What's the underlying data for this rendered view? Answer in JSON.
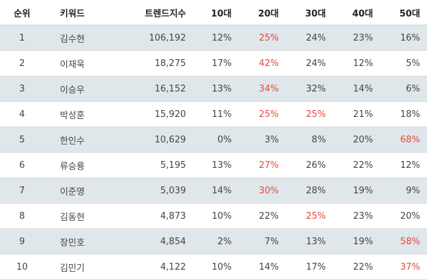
{
  "columns": [
    "순위",
    "키워드",
    "트렌드지수",
    "10대",
    "20대",
    "30대",
    "40대",
    "50대"
  ],
  "highlight_color": "#e24b3b",
  "rows": [
    {
      "rank": "1",
      "keyword": "김수현",
      "trend": "106,192",
      "ages": [
        "12%",
        "25%",
        "24%",
        "23%",
        "16%"
      ],
      "highlight": [
        false,
        true,
        false,
        false,
        false
      ]
    },
    {
      "rank": "2",
      "keyword": "이재욱",
      "trend": "18,275",
      "ages": [
        "17%",
        "42%",
        "24%",
        "12%",
        "5%"
      ],
      "highlight": [
        false,
        true,
        false,
        false,
        false
      ]
    },
    {
      "rank": "3",
      "keyword": "이승우",
      "trend": "16,152",
      "ages": [
        "13%",
        "34%",
        "32%",
        "14%",
        "6%"
      ],
      "highlight": [
        false,
        true,
        false,
        false,
        false
      ]
    },
    {
      "rank": "4",
      "keyword": "박성훈",
      "trend": "15,920",
      "ages": [
        "11%",
        "25%",
        "25%",
        "21%",
        "18%"
      ],
      "highlight": [
        false,
        true,
        true,
        false,
        false
      ]
    },
    {
      "rank": "5",
      "keyword": "한인수",
      "trend": "10,629",
      "ages": [
        "0%",
        "3%",
        "8%",
        "20%",
        "68%"
      ],
      "highlight": [
        false,
        false,
        false,
        false,
        true
      ]
    },
    {
      "rank": "6",
      "keyword": "류승룡",
      "trend": "5,195",
      "ages": [
        "13%",
        "27%",
        "26%",
        "22%",
        "12%"
      ],
      "highlight": [
        false,
        true,
        false,
        false,
        false
      ]
    },
    {
      "rank": "7",
      "keyword": "이준영",
      "trend": "5,039",
      "ages": [
        "14%",
        "30%",
        "28%",
        "19%",
        "9%"
      ],
      "highlight": [
        false,
        true,
        false,
        false,
        false
      ]
    },
    {
      "rank": "8",
      "keyword": "김동현",
      "trend": "4,873",
      "ages": [
        "10%",
        "22%",
        "25%",
        "23%",
        "20%"
      ],
      "highlight": [
        false,
        false,
        true,
        false,
        false
      ]
    },
    {
      "rank": "9",
      "keyword": "장민호",
      "trend": "4,854",
      "ages": [
        "2%",
        "7%",
        "13%",
        "19%",
        "58%"
      ],
      "highlight": [
        false,
        false,
        false,
        false,
        true
      ]
    },
    {
      "rank": "10",
      "keyword": "김민기",
      "trend": "4,122",
      "ages": [
        "10%",
        "14%",
        "17%",
        "22%",
        "37%"
      ],
      "highlight": [
        false,
        false,
        false,
        false,
        true
      ]
    }
  ]
}
